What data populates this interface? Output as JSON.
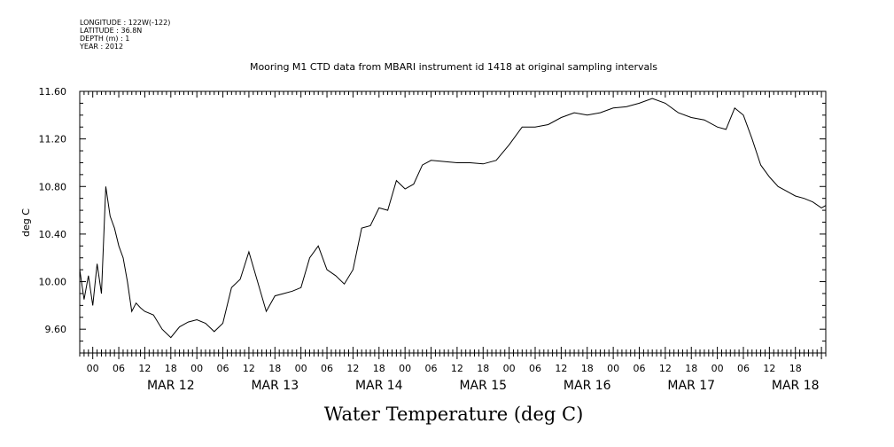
{
  "meta": {
    "longitude": "LONGITUDE : 122W(-122)",
    "latitude": "LATITUDE : 36.8N",
    "depth": "DEPTH (m) : 1",
    "year": "YEAR : 2012"
  },
  "chart_data": {
    "type": "line",
    "title": "Mooring M1 CTD data from MBARI instrument id 1418 at original sampling intervals",
    "xlabel": "Water Temperature (deg C)",
    "ylabel": "deg C",
    "ylim": [
      9.4,
      11.6
    ],
    "yticks": [
      9.6,
      10.0,
      10.4,
      10.8,
      11.2,
      11.6
    ],
    "ytick_labels": [
      "9.60",
      "10.00",
      "10.40",
      "10.80",
      "11.20",
      "11.60"
    ],
    "xlim": [
      "2012-03-11T15:00",
      "2012-03-18T19:00"
    ],
    "xtick_hours": [
      "00",
      "06",
      "12",
      "18",
      "00",
      "06",
      "12",
      "18",
      "00",
      "06",
      "12",
      "18",
      "00",
      "06",
      "12",
      "18",
      "00",
      "06",
      "12",
      "18",
      "00",
      "06",
      "12",
      "18",
      "00",
      "06",
      "12",
      "18"
    ],
    "xtick_days": [
      "MAR 12",
      "MAR 13",
      "MAR 14",
      "MAR 15",
      "MAR 16",
      "MAR 17",
      "MAR 18"
    ],
    "grid": false,
    "series": [
      {
        "color": "#000000",
        "x": [
          "2012-03-11T15:00",
          "2012-03-11T16:00",
          "2012-03-11T17:00",
          "2012-03-11T18:00",
          "2012-03-11T19:00",
          "2012-03-11T20:00",
          "2012-03-11T21:00",
          "2012-03-11T22:00",
          "2012-03-11T23:00",
          "2012-03-12T00:00",
          "2012-03-12T01:00",
          "2012-03-12T02:00",
          "2012-03-12T03:00",
          "2012-03-12T04:00",
          "2012-03-12T05:00",
          "2012-03-12T06:00",
          "2012-03-12T08:00",
          "2012-03-12T10:00",
          "2012-03-12T12:00",
          "2012-03-12T14:00",
          "2012-03-12T16:00",
          "2012-03-12T18:00",
          "2012-03-12T20:00",
          "2012-03-12T22:00",
          "2012-03-13T00:00",
          "2012-03-13T02:00",
          "2012-03-13T04:00",
          "2012-03-13T06:00",
          "2012-03-13T08:00",
          "2012-03-13T10:00",
          "2012-03-13T12:00",
          "2012-03-13T14:00",
          "2012-03-13T16:00",
          "2012-03-13T18:00",
          "2012-03-13T20:00",
          "2012-03-13T22:00",
          "2012-03-14T00:00",
          "2012-03-14T02:00",
          "2012-03-14T04:00",
          "2012-03-14T06:00",
          "2012-03-14T08:00",
          "2012-03-14T10:00",
          "2012-03-14T12:00",
          "2012-03-14T14:00",
          "2012-03-14T16:00",
          "2012-03-14T18:00",
          "2012-03-14T20:00",
          "2012-03-14T22:00",
          "2012-03-15T00:00",
          "2012-03-15T03:00",
          "2012-03-15T06:00",
          "2012-03-15T09:00",
          "2012-03-15T12:00",
          "2012-03-15T15:00",
          "2012-03-15T18:00",
          "2012-03-15T21:00",
          "2012-03-16T00:00",
          "2012-03-16T03:00",
          "2012-03-16T06:00",
          "2012-03-16T09:00",
          "2012-03-16T12:00",
          "2012-03-16T15:00",
          "2012-03-16T18:00",
          "2012-03-16T21:00",
          "2012-03-17T00:00",
          "2012-03-17T03:00",
          "2012-03-17T06:00",
          "2012-03-17T09:00",
          "2012-03-17T12:00",
          "2012-03-17T15:00",
          "2012-03-17T18:00",
          "2012-03-17T20:00",
          "2012-03-17T22:00",
          "2012-03-18T00:00",
          "2012-03-18T02:00",
          "2012-03-18T04:00",
          "2012-03-18T06:00",
          "2012-03-18T08:00",
          "2012-03-18T10:00",
          "2012-03-18T12:00",
          "2012-03-18T14:00",
          "2012-03-18T16:00",
          "2012-03-18T18:00",
          "2012-03-18T19:00"
        ],
        "y": [
          10.1,
          9.85,
          10.05,
          9.8,
          10.15,
          9.9,
          10.8,
          10.55,
          10.45,
          10.3,
          10.2,
          10.0,
          9.75,
          9.82,
          9.78,
          9.75,
          9.72,
          9.6,
          9.53,
          9.62,
          9.66,
          9.68,
          9.65,
          9.58,
          9.65,
          9.95,
          10.02,
          10.25,
          10.0,
          9.75,
          9.88,
          9.9,
          9.92,
          9.95,
          10.2,
          10.3,
          10.1,
          10.05,
          9.98,
          10.1,
          10.45,
          10.47,
          10.62,
          10.6,
          10.85,
          10.78,
          10.82,
          10.98,
          11.02,
          11.01,
          11.0,
          11.0,
          10.99,
          11.02,
          11.15,
          11.3,
          11.3,
          11.32,
          11.38,
          11.42,
          11.4,
          11.42,
          11.46,
          11.47,
          11.5,
          11.54,
          11.5,
          11.42,
          11.38,
          11.36,
          11.3,
          11.28,
          11.46,
          11.4,
          11.2,
          10.98,
          10.88,
          10.8,
          10.76,
          10.72,
          10.7,
          10.67,
          10.62,
          10.64
        ]
      }
    ]
  }
}
